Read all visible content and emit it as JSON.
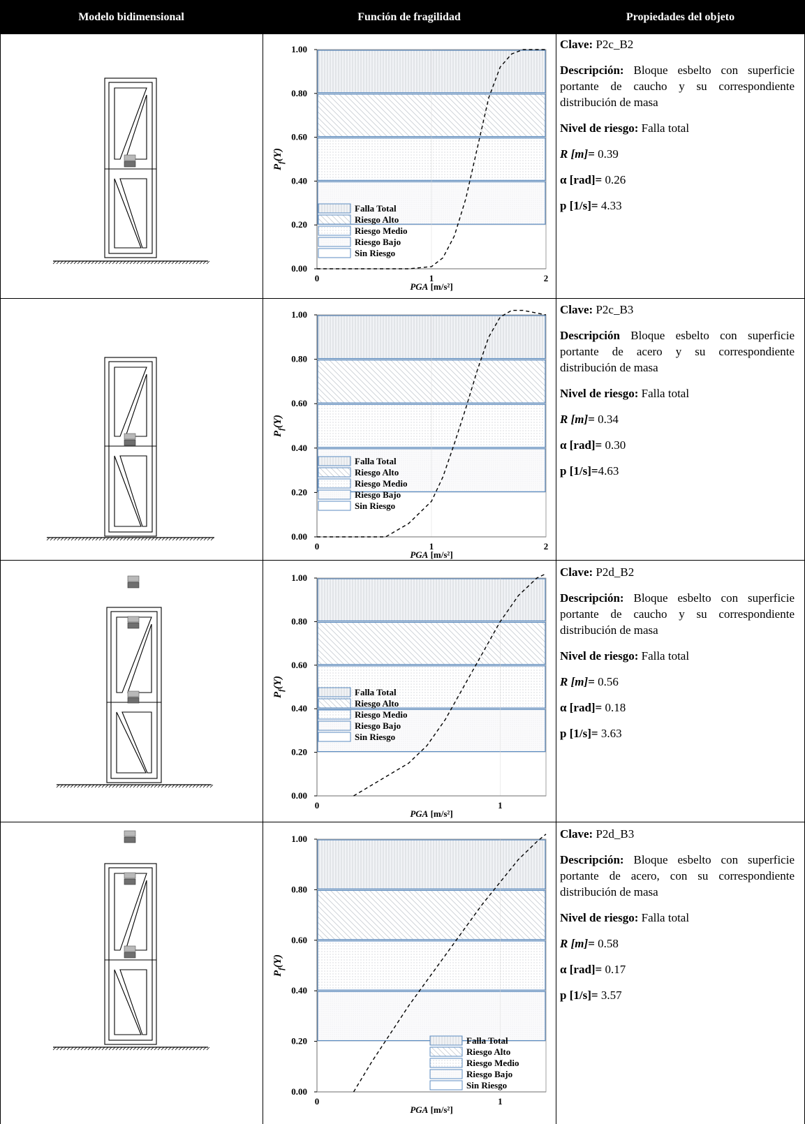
{
  "header": {
    "col1": "Modelo bidimensional",
    "col2": "Función de fragilidad",
    "col3": "Propiedades del objeto"
  },
  "colors": {
    "band_border": "#5b8bc0",
    "band_fill": "#f1f3f6",
    "grid": "#d8d8d8",
    "frag_curve": "#000000",
    "mass_block_dark": "#6f6f6f",
    "mass_block_light": "#b9b9b9"
  },
  "chart_data": [
    {
      "type": "line",
      "xlabel": "PGA [m/s²]",
      "ylabel": "Pf(Y)",
      "xlim": [
        0,
        2
      ],
      "ylim": [
        0,
        1
      ],
      "xticks": [
        "0",
        "1",
        "2"
      ],
      "yticks": [
        "0.00",
        "0.20",
        "0.40",
        "0.60",
        "0.80",
        "1.00"
      ],
      "grid": true,
      "legend_position": "bottom-left",
      "legend": [
        "Falla Total",
        "Riesgo Alto",
        "Riesgo Medio",
        "Riesgo Bajo",
        "Sin Riesgo"
      ],
      "risk_bands": [
        {
          "name": "Falla Total",
          "from": 0.8,
          "to": 1.0
        },
        {
          "name": "Riesgo Alto",
          "from": 0.6,
          "to": 0.8
        },
        {
          "name": "Riesgo Medio",
          "from": 0.4,
          "to": 0.6
        },
        {
          "name": "Riesgo Bajo",
          "from": 0.2,
          "to": 0.4
        },
        {
          "name": "Sin Riesgo",
          "from": 0.0,
          "to": 0.2
        }
      ],
      "series": [
        {
          "x": [
            0.0,
            0.6,
            0.8,
            1.0,
            1.1,
            1.2,
            1.3,
            1.4,
            1.5,
            1.6,
            1.7,
            1.8,
            1.9,
            2.0
          ],
          "y": [
            0.0,
            0.0,
            0.0,
            0.01,
            0.05,
            0.15,
            0.32,
            0.55,
            0.78,
            0.92,
            0.98,
            1.0,
            1.0,
            1.0
          ]
        }
      ]
    },
    {
      "type": "line",
      "xlabel": "PGA [m/s²]",
      "ylabel": "Pf(Y)",
      "xlim": [
        0,
        2
      ],
      "ylim": [
        0,
        1
      ],
      "xticks": [
        "0",
        "1",
        "2"
      ],
      "yticks": [
        "0.00",
        "0.20",
        "0.40",
        "0.60",
        "0.80",
        "1.00"
      ],
      "grid": true,
      "legend_position": "bottom-left",
      "legend": [
        "Falla Total",
        "Riesgo Alto",
        "Riesgo Medio",
        "Riesgo Bajo",
        "Sin Riesgo"
      ],
      "risk_bands": [
        {
          "name": "Falla Total",
          "from": 0.8,
          "to": 1.0
        },
        {
          "name": "Riesgo Alto",
          "from": 0.6,
          "to": 0.8
        },
        {
          "name": "Riesgo Medio",
          "from": 0.4,
          "to": 0.6
        },
        {
          "name": "Riesgo Bajo",
          "from": 0.2,
          "to": 0.4
        },
        {
          "name": "Sin Riesgo",
          "from": 0.0,
          "to": 0.2
        }
      ],
      "series": [
        {
          "x": [
            0.0,
            0.6,
            0.8,
            1.0,
            1.1,
            1.2,
            1.3,
            1.4,
            1.5,
            1.6,
            1.7,
            1.8,
            1.9,
            2.0
          ],
          "y": [
            0.0,
            0.0,
            0.06,
            0.16,
            0.27,
            0.42,
            0.58,
            0.75,
            0.9,
            0.99,
            1.02,
            1.02,
            1.01,
            1.0
          ]
        }
      ]
    },
    {
      "type": "line",
      "xlabel": "PGA [m/s²]",
      "ylabel": "Pf(Y)",
      "xlim": [
        0,
        1.25
      ],
      "ylim": [
        0,
        1
      ],
      "xticks": [
        "0",
        "1"
      ],
      "yticks": [
        "0.00",
        "0.20",
        "0.40",
        "0.60",
        "0.80",
        "1.00"
      ],
      "grid": true,
      "legend_position": "bottom-left",
      "legend": [
        "Falla Total",
        "Riesgo Alto",
        "Riesgo Medio",
        "Riesgo Bajo",
        "Sin Riesgo"
      ],
      "risk_bands": [
        {
          "name": "Falla Total",
          "from": 0.8,
          "to": 1.0
        },
        {
          "name": "Riesgo Alto",
          "from": 0.6,
          "to": 0.8
        },
        {
          "name": "Riesgo Medio",
          "from": 0.4,
          "to": 0.6
        },
        {
          "name": "Riesgo Bajo",
          "from": 0.2,
          "to": 0.4
        },
        {
          "name": "Sin Riesgo",
          "from": 0.0,
          "to": 0.2
        }
      ],
      "series": [
        {
          "x": [
            0.2,
            0.3,
            0.4,
            0.5,
            0.6,
            0.7,
            0.8,
            0.9,
            1.0,
            1.1,
            1.2,
            1.25
          ],
          "y": [
            0.0,
            0.05,
            0.1,
            0.15,
            0.23,
            0.35,
            0.5,
            0.65,
            0.8,
            0.92,
            1.0,
            1.02
          ]
        }
      ]
    },
    {
      "type": "line",
      "xlabel": "PGA [m/s²]",
      "ylabel": "Pf(Y)",
      "xlim": [
        0,
        1.25
      ],
      "ylim": [
        0,
        1
      ],
      "xticks": [
        "0",
        "1"
      ],
      "yticks": [
        "0.00",
        "0.20",
        "0.40",
        "0.60",
        "0.80",
        "1.00"
      ],
      "grid": true,
      "legend_position": "bottom-right",
      "legend": [
        "Falla Total",
        "Riesgo Alto",
        "Riesgo Medio",
        "Riesgo Bajo",
        "Sin Riesgo"
      ],
      "risk_bands": [
        {
          "name": "Falla Total",
          "from": 0.8,
          "to": 1.0
        },
        {
          "name": "Riesgo Alto",
          "from": 0.6,
          "to": 0.8
        },
        {
          "name": "Riesgo Medio",
          "from": 0.4,
          "to": 0.6
        },
        {
          "name": "Riesgo Bajo",
          "from": 0.2,
          "to": 0.4
        },
        {
          "name": "Sin Riesgo",
          "from": 0.0,
          "to": 0.2
        }
      ],
      "series": [
        {
          "x": [
            0.2,
            0.3,
            0.4,
            0.5,
            0.6,
            0.7,
            0.8,
            0.9,
            1.0,
            1.1,
            1.2,
            1.25
          ],
          "y": [
            0.0,
            0.12,
            0.23,
            0.34,
            0.44,
            0.54,
            0.64,
            0.74,
            0.83,
            0.92,
            0.99,
            1.02
          ]
        }
      ]
    }
  ],
  "rows": [
    {
      "clave_label": "Clave:",
      "clave": " P2c_B2",
      "desc_label": "Descripción:",
      "desc": " Bloque esbelto con superficie portante de caucho y su correspondiente distribución de masa",
      "nivel_label": "Nivel de riesgo:",
      "nivel": " Falla total",
      "r_label": "R [m]=",
      "r": " 0.39",
      "alpha_label": "α [rad]=",
      "alpha": " 0.26",
      "p_label": "p [1/s]=",
      "p": " 4.33"
    },
    {
      "clave_label": "Clave:",
      "clave": " P2c_B3",
      "desc_label": "Descripción",
      "desc": " Bloque esbelto con superficie portante de acero y su correspondiente distribución de masa",
      "nivel_label": "Nivel de riesgo:",
      "nivel": " Falla total",
      "r_label": "R [m]=",
      "r": " 0.34",
      "alpha_label": "α [rad]=",
      "alpha": " 0.30",
      "p_label": "p [1/s]=",
      "p": "4.63"
    },
    {
      "clave_label": "Clave:",
      "clave": " P2d_B2",
      "desc_label": "Descripción:",
      "desc": " Bloque esbelto con superficie portante de caucho y su correspondiente distribución de masa",
      "nivel_label": "Nivel de riesgo:",
      "nivel": " Falla total",
      "r_label": "R [m]=",
      "r": " 0.56",
      "alpha_label": "α [rad]=",
      "alpha": " 0.18",
      "p_label": "p [1/s]=",
      "p": " 3.63"
    },
    {
      "clave_label": "Clave:",
      "clave": " P2d_B3",
      "desc_label": "Descripción:",
      "desc": " Bloque esbelto con superficie portante de acero, con su correspondiente distribución de masa",
      "nivel_label": "Nivel de riesgo:",
      "nivel": " Falla total",
      "r_label": "R [m]=",
      "r": " 0.58",
      "alpha_label": "α [rad]=",
      "alpha": " 0.17",
      "p_label": "p [1/s]=",
      "p": " 3.57"
    }
  ]
}
